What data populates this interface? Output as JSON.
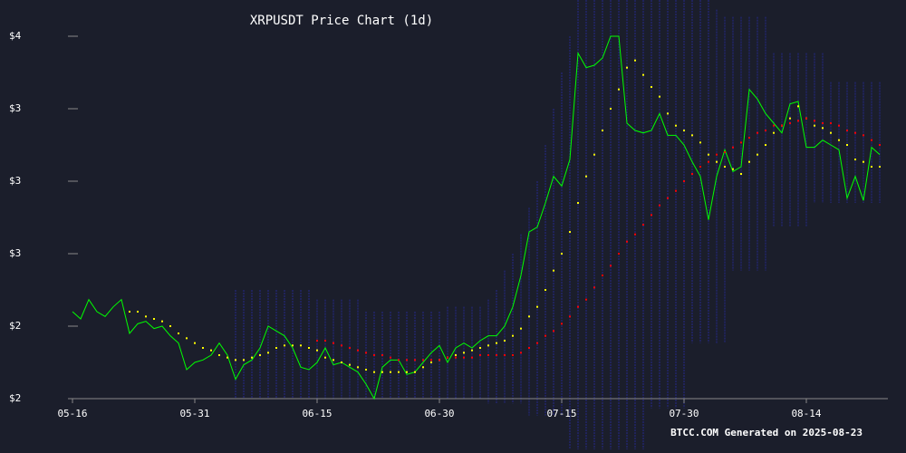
{
  "chart_data": {
    "type": "line",
    "title": "XRPUSDT Price Chart (1d)",
    "footer": "BTCC.COM Generated on 2025-08-23",
    "categories": [
      "05-16",
      null,
      null,
      null,
      null,
      null,
      null,
      null,
      null,
      null,
      null,
      null,
      null,
      null,
      null,
      "05-31",
      null,
      null,
      null,
      null,
      null,
      null,
      null,
      null,
      null,
      null,
      null,
      null,
      null,
      null,
      "06-15",
      null,
      null,
      null,
      null,
      null,
      null,
      null,
      null,
      null,
      null,
      null,
      null,
      null,
      null,
      "06-30",
      null,
      null,
      null,
      null,
      null,
      null,
      null,
      null,
      null,
      null,
      null,
      null,
      null,
      null,
      "07-15",
      null,
      null,
      null,
      null,
      null,
      null,
      null,
      null,
      null,
      null,
      null,
      null,
      null,
      null,
      "07-30",
      null,
      null,
      null,
      null,
      null,
      null,
      null,
      null,
      null,
      null,
      null,
      null,
      null,
      null,
      "08-14",
      null,
      null,
      null,
      null,
      null,
      null,
      null,
      null,
      null
    ],
    "ylim": [
      2.0,
      3.65
    ],
    "yticks": [
      {
        "value": 2.0,
        "label": "$2"
      },
      {
        "value": 2.3,
        "label": "$2"
      },
      {
        "value": 2.6,
        "label": "$3"
      },
      {
        "value": 2.9,
        "label": "$3"
      },
      {
        "value": 3.2,
        "label": "$3"
      },
      {
        "value": 3.5,
        "label": "$4"
      }
    ],
    "band": {
      "color": "#25298a",
      "upper": [
        null,
        null,
        null,
        null,
        null,
        null,
        null,
        null,
        null,
        null,
        null,
        null,
        null,
        null,
        null,
        null,
        null,
        null,
        null,
        null,
        2.45,
        2.45,
        2.45,
        2.45,
        2.45,
        2.45,
        2.45,
        2.45,
        2.45,
        2.45,
        2.41,
        2.41,
        2.41,
        2.41,
        2.41,
        2.41,
        2.36,
        2.36,
        2.36,
        2.36,
        2.36,
        2.36,
        2.36,
        2.36,
        2.36,
        2.36,
        2.38,
        2.38,
        2.38,
        2.38,
        2.38,
        2.41,
        2.45,
        2.53,
        2.6,
        2.68,
        2.79,
        2.9,
        3.05,
        3.2,
        3.35,
        3.5,
        3.65,
        3.65,
        3.65,
        3.65,
        3.65,
        3.65,
        3.65,
        3.65,
        3.65,
        3.65,
        3.65,
        3.65,
        3.65,
        3.65,
        3.65,
        3.65,
        3.65,
        3.61,
        3.58,
        3.58,
        3.58,
        3.58,
        3.58,
        3.58,
        3.43,
        3.43,
        3.43,
        3.43,
        3.43,
        3.43,
        3.43,
        3.31,
        3.31,
        3.31,
        3.31,
        3.31,
        3.31,
        3.31
      ],
      "lower": [
        null,
        null,
        null,
        null,
        null,
        null,
        null,
        null,
        null,
        null,
        null,
        null,
        null,
        null,
        null,
        null,
        null,
        null,
        null,
        null,
        2.0,
        2.0,
        2.0,
        2.0,
        2.0,
        2.0,
        2.0,
        2.0,
        2.0,
        2.0,
        2.0,
        2.0,
        2.0,
        2.0,
        2.0,
        2.0,
        2.0,
        2.0,
        2.0,
        2.0,
        2.0,
        2.0,
        2.0,
        2.0,
        2.0,
        2.0,
        2.0,
        2.0,
        2.0,
        2.0,
        2.0,
        1.98,
        1.98,
        1.98,
        1.98,
        1.98,
        1.93,
        1.93,
        1.93,
        1.93,
        1.93,
        1.79,
        1.79,
        1.79,
        1.79,
        1.79,
        1.79,
        1.79,
        1.79,
        1.79,
        1.79,
        1.96,
        1.96,
        1.96,
        1.96,
        1.96,
        2.23,
        2.23,
        2.23,
        2.23,
        2.23,
        2.53,
        2.53,
        2.53,
        2.53,
        2.53,
        2.71,
        2.71,
        2.71,
        2.71,
        2.71,
        2.81,
        2.81,
        2.81,
        2.81,
        2.81,
        2.81,
        2.81,
        2.81,
        2.81
      ]
    },
    "series": [
      {
        "color": "#00ff00",
        "style": "line",
        "values": [
          2.36,
          2.33,
          2.41,
          2.36,
          2.34,
          2.38,
          2.41,
          2.27,
          2.31,
          2.32,
          2.29,
          2.3,
          2.26,
          2.23,
          2.12,
          2.15,
          2.16,
          2.18,
          2.23,
          2.18,
          2.08,
          2.14,
          2.16,
          2.21,
          2.3,
          2.28,
          2.26,
          2.21,
          2.13,
          2.12,
          2.15,
          2.21,
          2.14,
          2.15,
          2.13,
          2.11,
          2.06,
          2.0,
          2.13,
          2.16,
          2.16,
          2.1,
          2.11,
          2.15,
          2.19,
          2.22,
          2.15,
          2.21,
          2.23,
          2.21,
          2.24,
          2.26,
          2.26,
          2.3,
          2.38,
          2.51,
          2.69,
          2.71,
          2.81,
          2.92,
          2.88,
          2.99,
          3.43,
          3.37,
          3.38,
          3.41,
          3.5,
          3.5,
          3.14,
          3.11,
          3.1,
          3.11,
          3.18,
          3.09,
          3.09,
          3.05,
          2.98,
          2.92,
          2.74,
          2.92,
          3.03,
          2.94,
          2.96,
          3.28,
          3.24,
          3.18,
          3.14,
          3.1,
          3.22,
          3.23,
          3.04,
          3.04,
          3.07,
          3.05,
          3.03,
          2.83,
          2.92,
          2.82,
          3.04,
          3.01
        ]
      },
      {
        "color": "#ffff00",
        "style": "dots",
        "values": [
          null,
          null,
          null,
          null,
          null,
          null,
          null,
          2.36,
          2.36,
          2.34,
          2.33,
          2.32,
          2.3,
          2.27,
          2.25,
          2.23,
          2.21,
          2.2,
          2.18,
          2.17,
          2.16,
          2.16,
          2.17,
          2.18,
          2.19,
          2.21,
          2.22,
          2.22,
          2.22,
          2.21,
          2.2,
          2.17,
          2.16,
          2.15,
          2.14,
          2.13,
          2.12,
          2.11,
          2.11,
          2.11,
          2.11,
          2.11,
          2.11,
          2.13,
          2.15,
          2.16,
          2.17,
          2.18,
          2.19,
          2.2,
          2.21,
          2.22,
          2.23,
          2.24,
          2.26,
          2.29,
          2.34,
          2.38,
          2.45,
          2.53,
          2.6,
          2.69,
          2.81,
          2.92,
          3.01,
          3.11,
          3.2,
          3.28,
          3.37,
          3.4,
          3.34,
          3.29,
          3.25,
          3.18,
          3.13,
          3.11,
          3.09,
          3.06,
          3.01,
          2.98,
          2.96,
          2.95,
          2.93,
          2.98,
          3.01,
          3.05,
          3.1,
          3.13,
          3.16,
          3.21,
          3.16,
          3.13,
          3.12,
          3.1,
          3.07,
          3.05,
          2.99,
          2.98,
          2.96,
          2.96
        ]
      },
      {
        "color": "#ff0000",
        "style": "dots",
        "values": [
          null,
          null,
          null,
          null,
          null,
          null,
          null,
          null,
          null,
          null,
          null,
          null,
          null,
          null,
          null,
          null,
          null,
          null,
          null,
          null,
          null,
          null,
          null,
          null,
          null,
          null,
          null,
          null,
          null,
          null,
          2.24,
          2.24,
          2.23,
          2.22,
          2.21,
          2.2,
          2.19,
          2.18,
          2.18,
          2.17,
          2.16,
          2.16,
          2.16,
          2.16,
          2.16,
          2.16,
          2.17,
          2.17,
          2.17,
          2.17,
          2.18,
          2.18,
          2.18,
          2.18,
          2.18,
          2.19,
          2.21,
          2.23,
          2.26,
          2.28,
          2.31,
          2.34,
          2.38,
          2.41,
          2.46,
          2.51,
          2.55,
          2.6,
          2.65,
          2.68,
          2.72,
          2.76,
          2.8,
          2.83,
          2.86,
          2.9,
          2.93,
          2.96,
          2.98,
          3.01,
          3.02,
          3.04,
          3.06,
          3.08,
          3.1,
          3.11,
          3.13,
          3.13,
          3.14,
          3.15,
          3.16,
          3.15,
          3.14,
          3.14,
          3.13,
          3.11,
          3.1,
          3.09,
          3.07,
          3.05
        ]
      }
    ]
  }
}
